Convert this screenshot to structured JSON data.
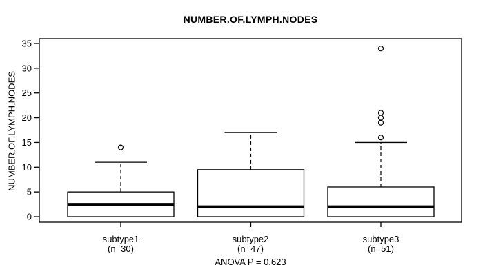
{
  "chart_data": {
    "type": "boxplot",
    "title": "NUMBER.OF.LYMPH.NODES",
    "ylabel": "NUMBER.OF.LYMPH.NODES",
    "xlabel": "",
    "ylim": [
      0,
      35
    ],
    "y_ticks": [
      0,
      5,
      10,
      15,
      20,
      25,
      30,
      35
    ],
    "grid": false,
    "annotation": "ANOVA P = 0.623",
    "colors": {
      "line": "#000000",
      "box_fill": "#ffffff",
      "background": "#ffffff"
    },
    "groups": [
      {
        "label": "subtype1",
        "n_label": "(n=30)",
        "n": 30,
        "whisker_low": 0,
        "q1": 0,
        "median": 2.5,
        "q3": 5,
        "whisker_high": 11,
        "outliers": [
          14
        ]
      },
      {
        "label": "subtype2",
        "n_label": "(n=47)",
        "n": 47,
        "whisker_low": 0,
        "q1": 0,
        "median": 2,
        "q3": 9.5,
        "whisker_high": 17,
        "outliers": []
      },
      {
        "label": "subtype3",
        "n_label": "(n=51)",
        "n": 51,
        "whisker_low": 0,
        "q1": 0,
        "median": 2,
        "q3": 6,
        "whisker_high": 15,
        "outliers": [
          16,
          19,
          20,
          21,
          34
        ]
      }
    ]
  }
}
